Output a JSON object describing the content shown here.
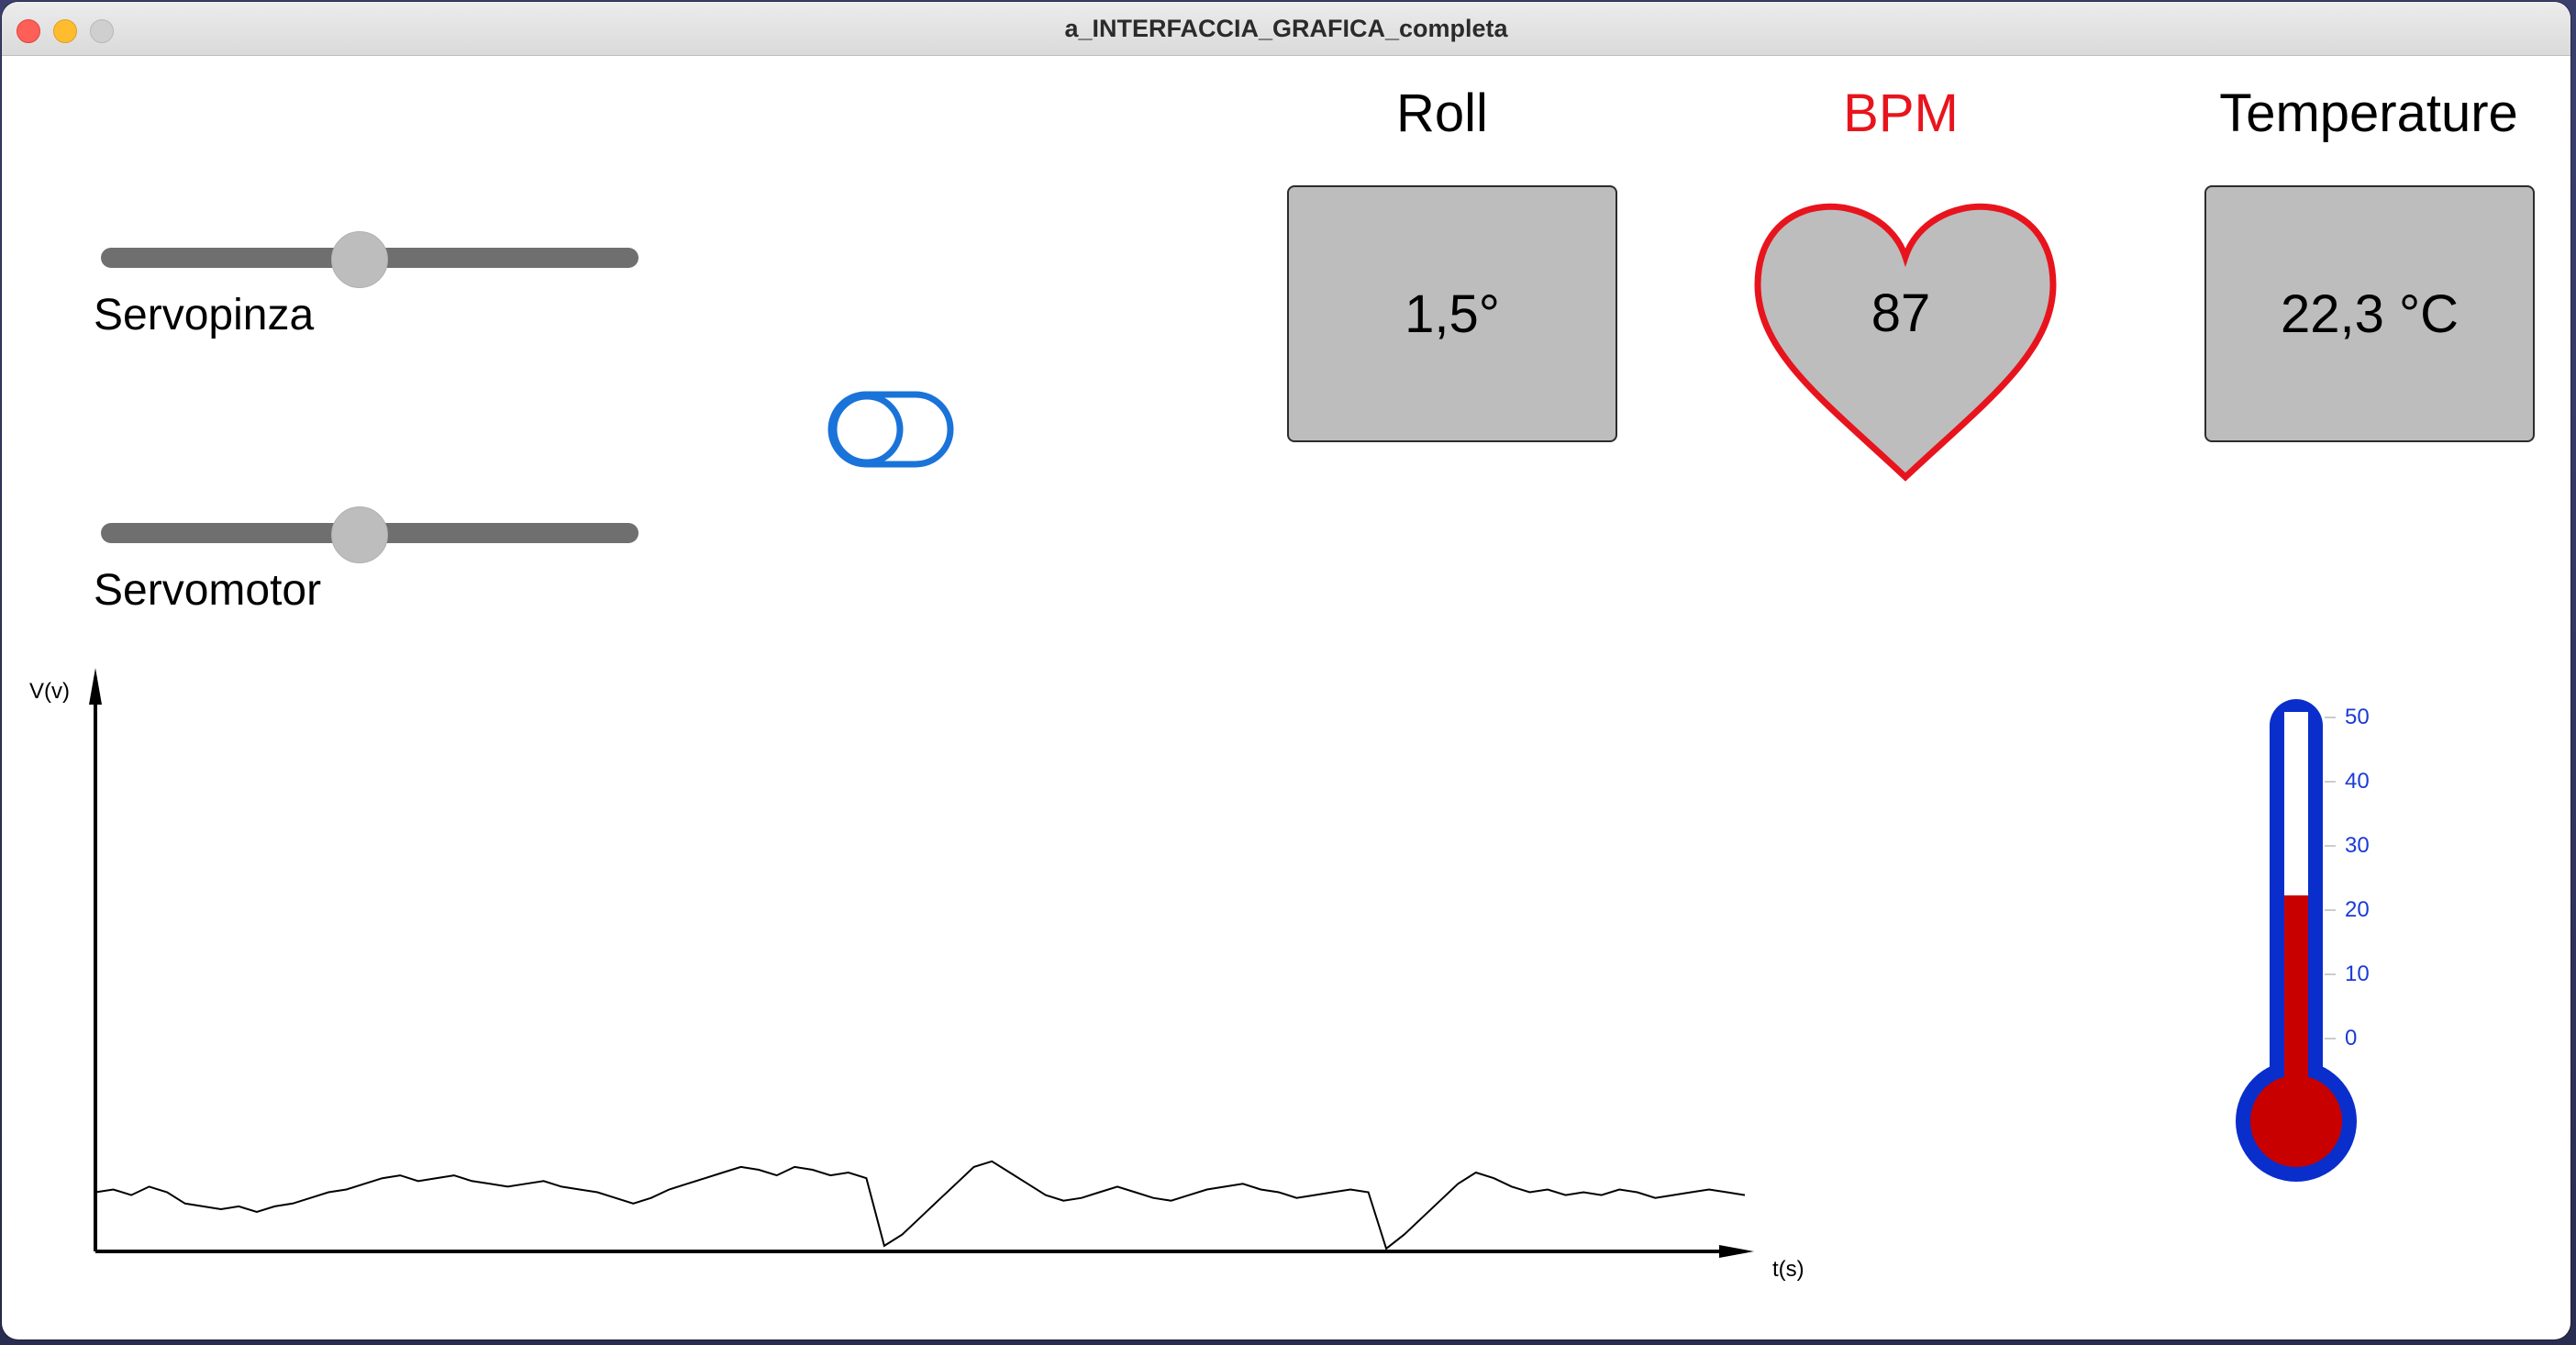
{
  "window": {
    "title": "a_INTERFACCIA_GRAFICA_completa"
  },
  "sliders": [
    {
      "label": "Servopinza",
      "value": 0.48
    },
    {
      "label": "Servomotor",
      "value": 0.48
    }
  ],
  "toggle": {
    "state": "off",
    "color": "#1a73d9"
  },
  "readouts": {
    "roll": {
      "title": "Roll",
      "value": "1,5°"
    },
    "bpm": {
      "title": "BPM",
      "value": "87",
      "title_color": "#e8141d",
      "heart_stroke": "#e8141d"
    },
    "temperature": {
      "title": "Temperature",
      "value": "22,3 °C"
    }
  },
  "thermometer": {
    "ticks": [
      "50",
      "40",
      "30",
      "20",
      "10",
      "0"
    ],
    "value": 22.3,
    "outer_color": "#0a2ecb",
    "mercury_color": "#c80000"
  },
  "chart_data": {
    "type": "line",
    "xlabel": "t(s)",
    "ylabel": "V(v)",
    "ylim": [
      0,
      10
    ],
    "series": [
      {
        "values": [
          1.05,
          1.1,
          1.0,
          1.15,
          1.05,
          0.85,
          0.8,
          0.75,
          0.8,
          0.7,
          0.8,
          0.85,
          0.95,
          1.05,
          1.1,
          1.2,
          1.3,
          1.35,
          1.25,
          1.3,
          1.35,
          1.25,
          1.2,
          1.15,
          1.2,
          1.25,
          1.15,
          1.1,
          1.05,
          0.95,
          0.85,
          0.95,
          1.1,
          1.2,
          1.3,
          1.4,
          1.5,
          1.45,
          1.35,
          1.5,
          1.45,
          1.35,
          1.4,
          1.3,
          0.1,
          0.3,
          0.6,
          0.9,
          1.2,
          1.5,
          1.6,
          1.4,
          1.2,
          1.0,
          0.9,
          0.95,
          1.05,
          1.15,
          1.05,
          0.95,
          0.9,
          1.0,
          1.1,
          1.15,
          1.2,
          1.1,
          1.05,
          0.95,
          1.0,
          1.05,
          1.1,
          1.05,
          0.05,
          0.3,
          0.6,
          0.9,
          1.2,
          1.4,
          1.3,
          1.15,
          1.05,
          1.1,
          1.0,
          1.05,
          1.0,
          1.1,
          1.05,
          0.95,
          1.0,
          1.05,
          1.1,
          1.05,
          1.0
        ]
      }
    ]
  }
}
